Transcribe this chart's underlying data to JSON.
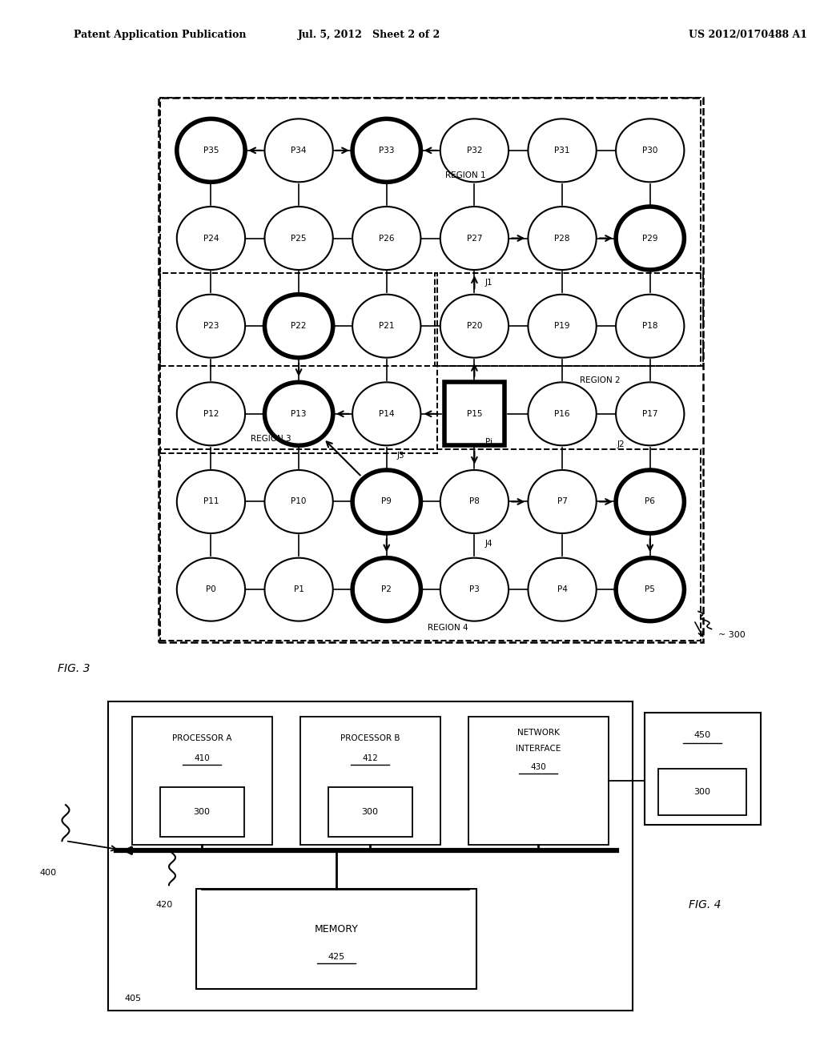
{
  "header_left": "Patent Application Publication",
  "header_mid": "Jul. 5, 2012   Sheet 2 of 2",
  "header_right": "US 2012/0170488 A1",
  "fig3_label": "FIG. 3",
  "fig4_label": "FIG. 4",
  "nodes": [
    {
      "id": "P35",
      "col": 0,
      "row": 5,
      "bold": true
    },
    {
      "id": "P34",
      "col": 1,
      "row": 5,
      "bold": false
    },
    {
      "id": "P33",
      "col": 2,
      "row": 5,
      "bold": true
    },
    {
      "id": "P32",
      "col": 3,
      "row": 5,
      "bold": false
    },
    {
      "id": "P31",
      "col": 4,
      "row": 5,
      "bold": false
    },
    {
      "id": "P30",
      "col": 5,
      "row": 5,
      "bold": false
    },
    {
      "id": "P24",
      "col": 0,
      "row": 4,
      "bold": false
    },
    {
      "id": "P25",
      "col": 1,
      "row": 4,
      "bold": false
    },
    {
      "id": "P26",
      "col": 2,
      "row": 4,
      "bold": false
    },
    {
      "id": "P27",
      "col": 3,
      "row": 4,
      "bold": false
    },
    {
      "id": "P28",
      "col": 4,
      "row": 4,
      "bold": false
    },
    {
      "id": "P29",
      "col": 5,
      "row": 4,
      "bold": true
    },
    {
      "id": "P23",
      "col": 0,
      "row": 3,
      "bold": false
    },
    {
      "id": "P22",
      "col": 1,
      "row": 3,
      "bold": true
    },
    {
      "id": "P21",
      "col": 2,
      "row": 3,
      "bold": false
    },
    {
      "id": "P20",
      "col": 3,
      "row": 3,
      "bold": false
    },
    {
      "id": "P19",
      "col": 4,
      "row": 3,
      "bold": false
    },
    {
      "id": "P18",
      "col": 5,
      "row": 3,
      "bold": false
    },
    {
      "id": "P12",
      "col": 0,
      "row": 2,
      "bold": false
    },
    {
      "id": "P13",
      "col": 1,
      "row": 2,
      "bold": true
    },
    {
      "id": "P14",
      "col": 2,
      "row": 2,
      "bold": false
    },
    {
      "id": "P15",
      "col": 3,
      "row": 2,
      "bold": false,
      "square": true
    },
    {
      "id": "P16",
      "col": 4,
      "row": 2,
      "bold": false
    },
    {
      "id": "P17",
      "col": 5,
      "row": 2,
      "bold": false
    },
    {
      "id": "P11",
      "col": 0,
      "row": 1,
      "bold": false
    },
    {
      "id": "P10",
      "col": 1,
      "row": 1,
      "bold": false
    },
    {
      "id": "P9",
      "col": 2,
      "row": 1,
      "bold": true
    },
    {
      "id": "P8",
      "col": 3,
      "row": 1,
      "bold": false
    },
    {
      "id": "P7",
      "col": 4,
      "row": 1,
      "bold": false
    },
    {
      "id": "P6",
      "col": 5,
      "row": 1,
      "bold": true
    },
    {
      "id": "P0",
      "col": 0,
      "row": 0,
      "bold": false
    },
    {
      "id": "P1",
      "col": 1,
      "row": 0,
      "bold": false
    },
    {
      "id": "P2",
      "col": 2,
      "row": 0,
      "bold": true
    },
    {
      "id": "P3",
      "col": 3,
      "row": 0,
      "bold": false
    },
    {
      "id": "P4",
      "col": 4,
      "row": 0,
      "bold": false
    },
    {
      "id": "P5",
      "col": 5,
      "row": 0,
      "bold": true
    }
  ],
  "background": "#ffffff"
}
